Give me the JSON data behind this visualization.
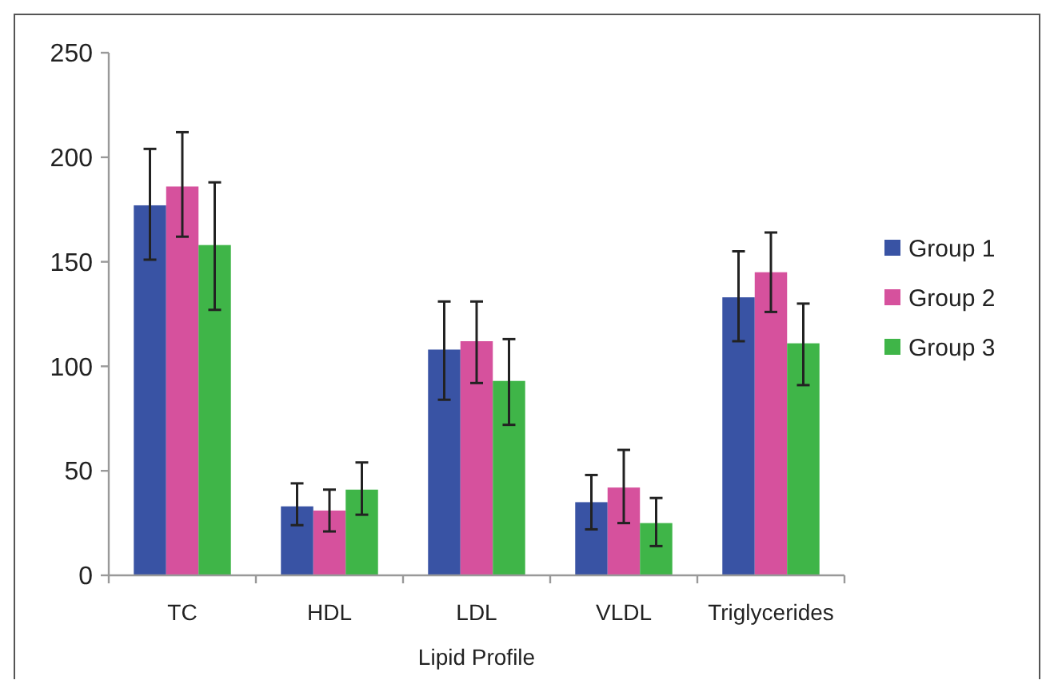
{
  "chart_data": {
    "type": "bar",
    "xlabel": "Lipid Profile",
    "categories": [
      "TC",
      "HDL",
      "LDL",
      "VLDL",
      "Triglycerides"
    ],
    "series": [
      {
        "name": "Group 1",
        "color": "#3953a4",
        "values": [
          177,
          33,
          108,
          35,
          133
        ],
        "errors": [
          [
            151,
            204
          ],
          [
            24,
            44
          ],
          [
            84,
            131
          ],
          [
            22,
            48
          ],
          [
            112,
            155
          ]
        ]
      },
      {
        "name": "Group 2",
        "color": "#d6519d",
        "values": [
          186,
          31,
          112,
          42,
          145
        ],
        "errors": [
          [
            162,
            212
          ],
          [
            21,
            41
          ],
          [
            92,
            131
          ],
          [
            25,
            60
          ],
          [
            126,
            164
          ]
        ]
      },
      {
        "name": "Group 3",
        "color": "#3fb548",
        "values": [
          158,
          41,
          93,
          25,
          111
        ],
        "errors": [
          [
            127,
            188
          ],
          [
            29,
            54
          ],
          [
            72,
            113
          ],
          [
            14,
            37
          ],
          [
            91,
            130
          ]
        ]
      }
    ],
    "ylim": [
      0,
      250
    ],
    "yticks": [
      0,
      50,
      100,
      150,
      200,
      250
    ],
    "grid": false,
    "legend": "right"
  }
}
